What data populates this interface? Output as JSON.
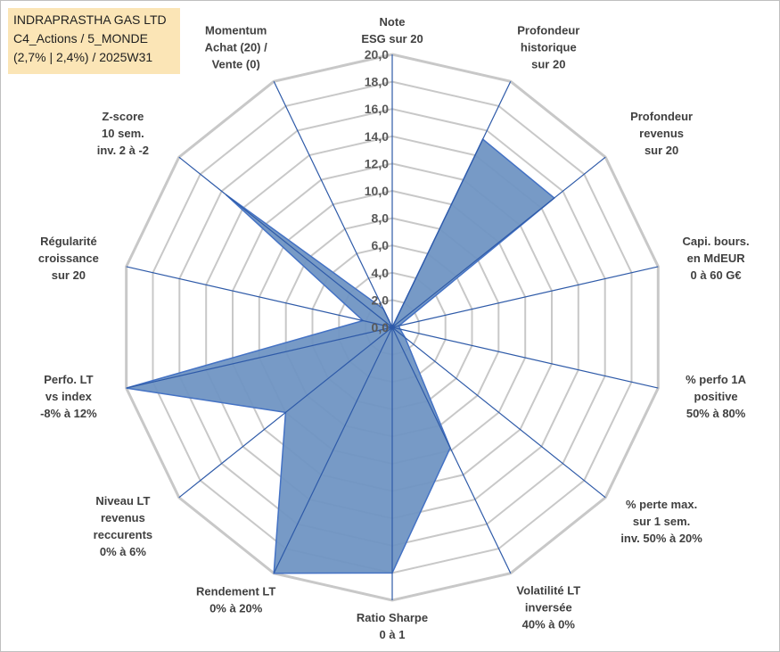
{
  "header": {
    "line1": "INDRAPRASTHA GAS LTD",
    "line2": "C4_Actions / 5_MONDE",
    "line3": "(2,7% | 2,4%) / 2025W31"
  },
  "colors": {
    "fill": "#7095c3",
    "stroke": "#4472c4",
    "axis": "#2e5aa8",
    "grid": "#c8c8c8",
    "title_bg": "#fbe5b6"
  },
  "chart_data": {
    "type": "radar",
    "scale": {
      "min": 0,
      "max": 20,
      "step": 2,
      "tick_labels": [
        "0,0",
        "2,0",
        "4,0",
        "6,0",
        "8,0",
        "10,0",
        "12,0",
        "14,0",
        "16,0",
        "18,0",
        "20,0"
      ]
    },
    "axes": [
      {
        "label": [
          "Note",
          "ESG sur 20"
        ],
        "value": 0
      },
      {
        "label": [
          "Profondeur",
          "historique",
          "sur 20"
        ],
        "value": 15.3
      },
      {
        "label": [
          "Profondeur",
          "revenus",
          "sur 20"
        ],
        "value": 15.2
      },
      {
        "label": [
          "Capi. bours.",
          "en MdEUR",
          "0 à 60 G€"
        ],
        "value": 0.5
      },
      {
        "label": [
          "% perfo 1A",
          "positive",
          "50% à 80%"
        ],
        "value": 0.6
      },
      {
        "label": [
          "% perte max.",
          "sur 1 sem.",
          "inv. 50% à 20%"
        ],
        "value": 1.2
      },
      {
        "label": [
          "Volatilité LT",
          "inversée",
          "40% à 0%"
        ],
        "value": 9.8
      },
      {
        "label": [
          "Ratio Sharpe",
          "0 à 1"
        ],
        "value": 18.0
      },
      {
        "label": [
          "Rendement LT",
          "0% à 20%"
        ],
        "value": 20.0
      },
      {
        "label": [
          "Niveau LT",
          "revenus",
          "reccurents",
          "0% à 6%"
        ],
        "value": 10.0
      },
      {
        "label": [
          "Perfo. LT",
          "vs index",
          "-8% à 12%"
        ],
        "value": 20.0
      },
      {
        "label": [
          "Régularité",
          "croissance",
          "sur 20"
        ],
        "value": 2.2
      },
      {
        "label": [
          "Z-score",
          "10 sem.",
          "inv. 2 à -2"
        ],
        "value": 15.6
      },
      {
        "label": [
          "Momentum",
          "Achat (20) /",
          "Vente (0)"
        ],
        "value": 1.5
      }
    ]
  }
}
